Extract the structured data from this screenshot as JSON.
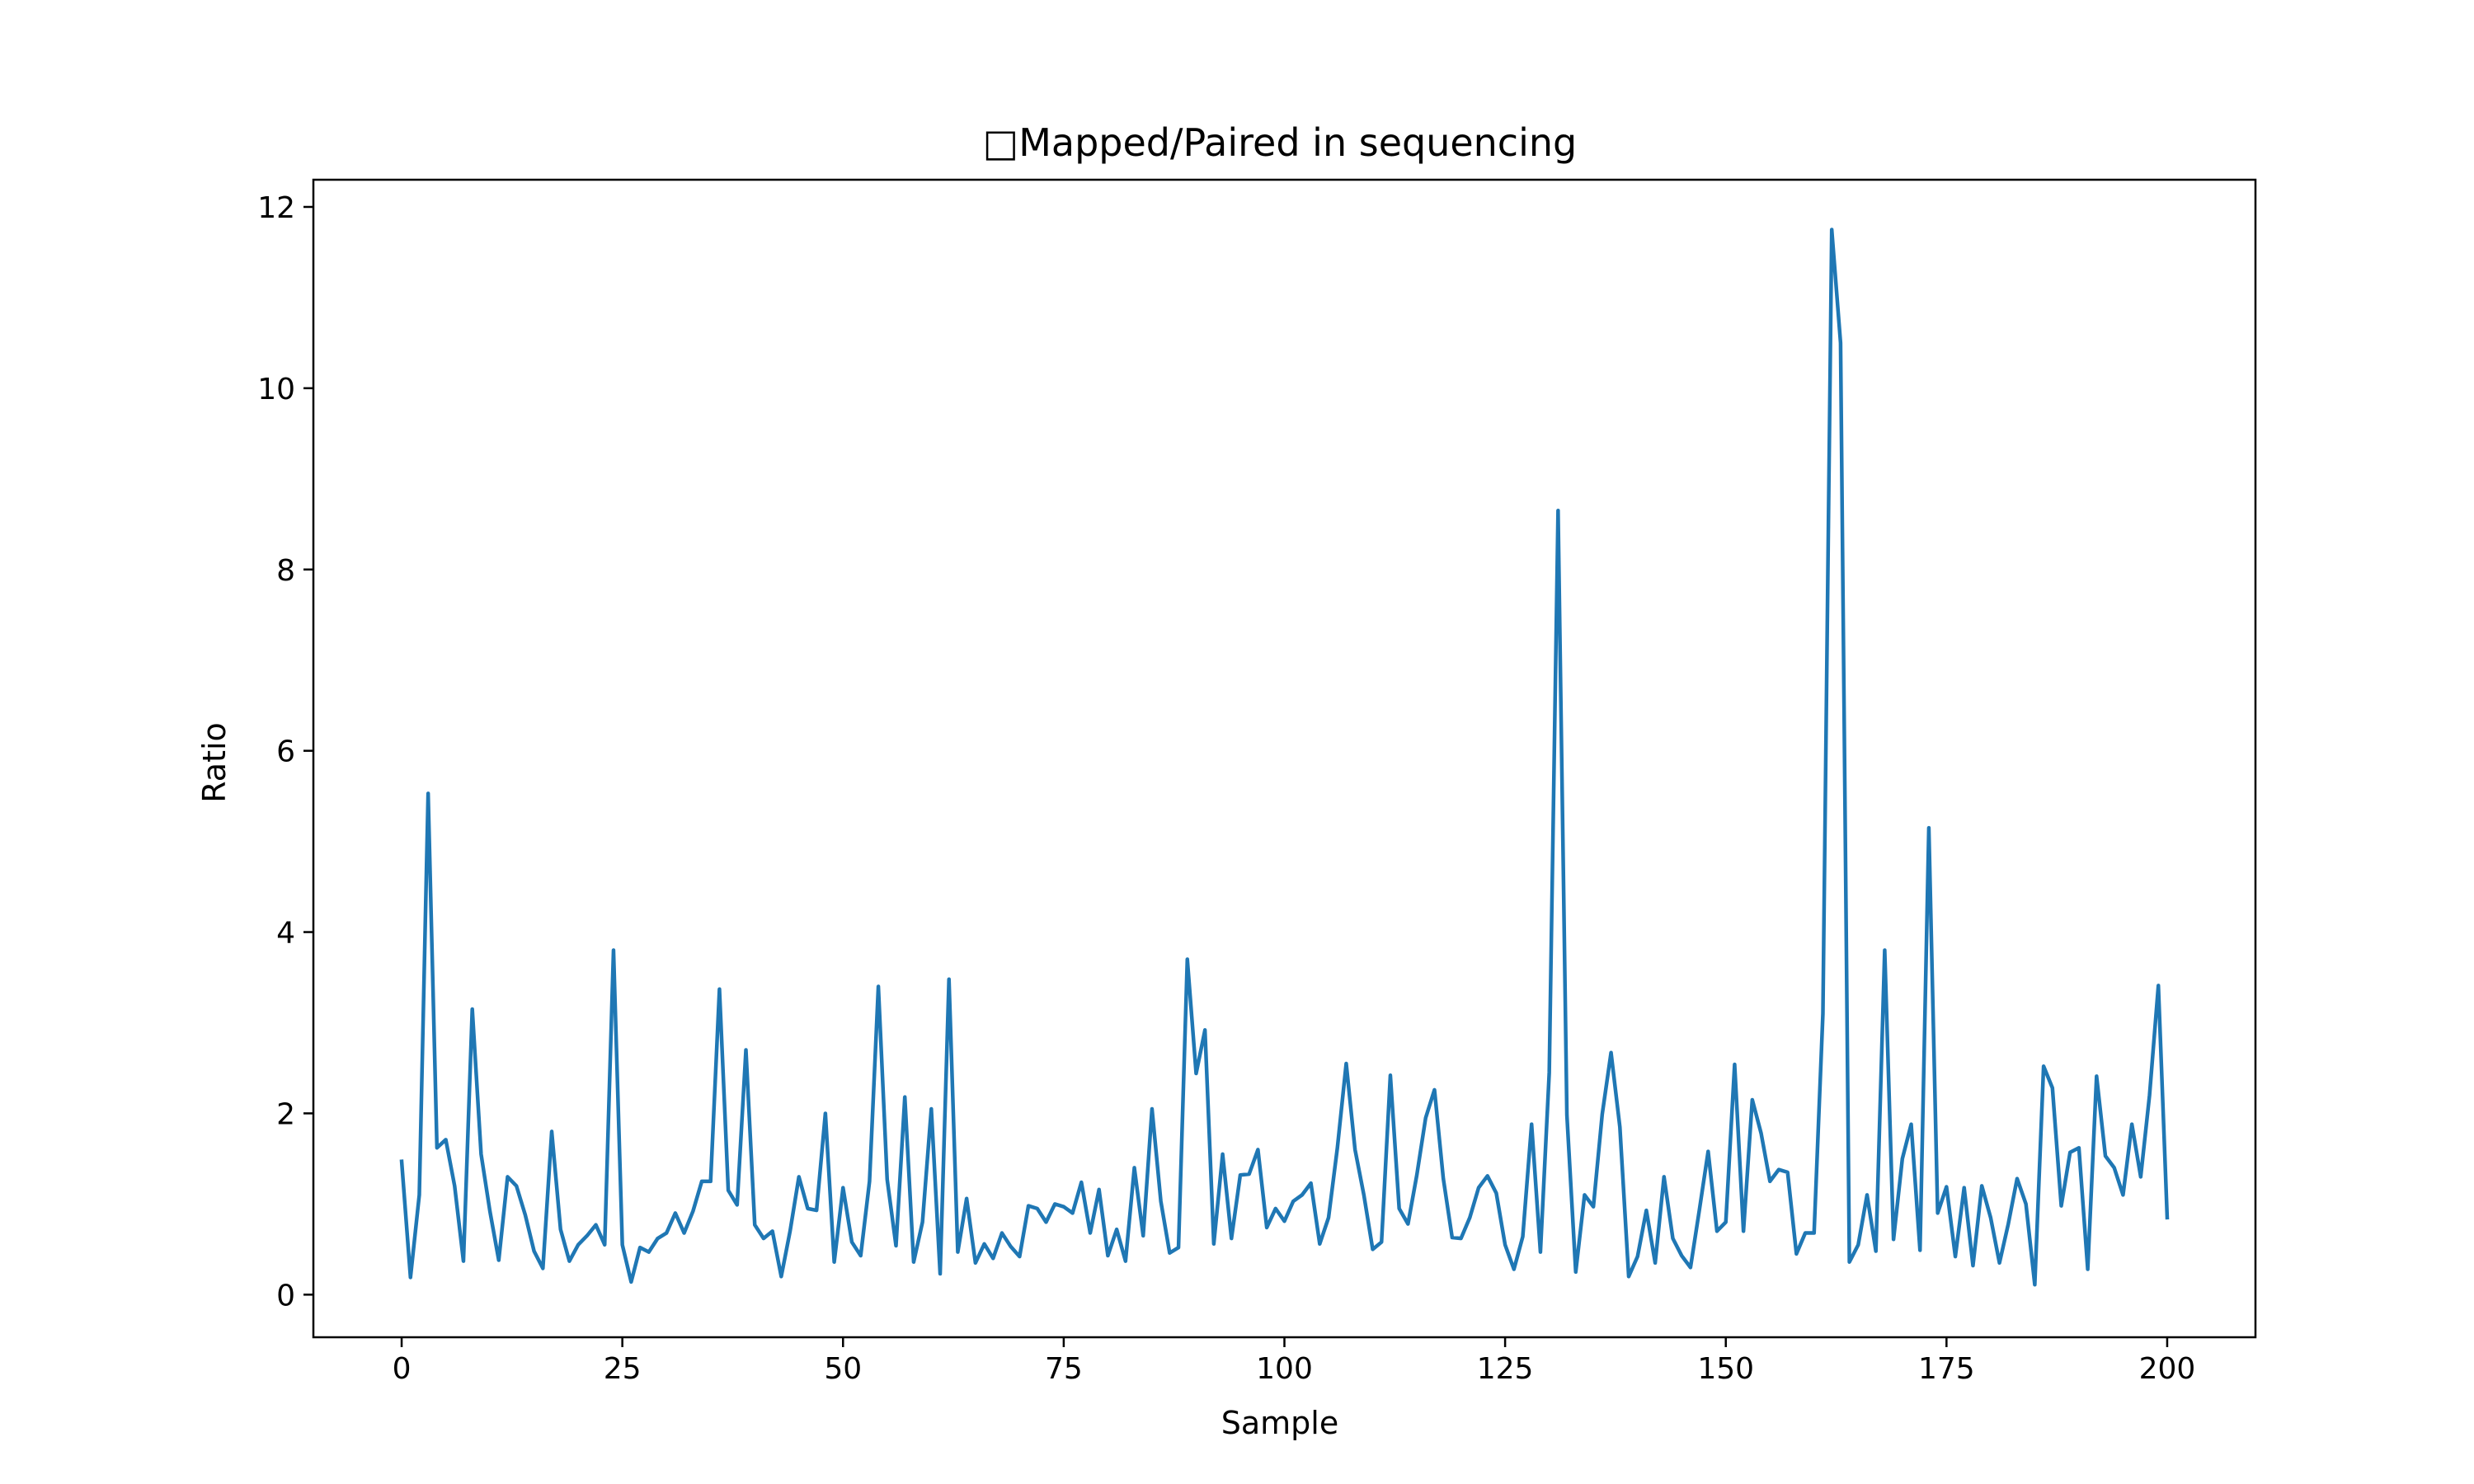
{
  "chart_data": {
    "type": "line",
    "title": "□Mapped/Paired in sequencing",
    "xlabel": "Sample",
    "ylabel": "Ratio",
    "xlim": [
      -10,
      210
    ],
    "ylim": [
      -0.47,
      12.3
    ],
    "xticks": [
      0,
      25,
      50,
      75,
      100,
      125,
      150,
      175,
      200
    ],
    "yticks": [
      0,
      2,
      4,
      6,
      8,
      10,
      12
    ],
    "grid": false,
    "legend": "none",
    "series": [
      {
        "color": "#1f77b4",
        "x_start": 0,
        "x_step": 1,
        "values": [
          1.47,
          0.19,
          1.1,
          5.53,
          1.62,
          1.71,
          1.2,
          0.37,
          3.15,
          1.55,
          0.92,
          0.38,
          1.3,
          1.2,
          0.88,
          0.48,
          0.29,
          1.8,
          0.72,
          0.37,
          0.55,
          0.65,
          0.77,
          0.55,
          3.8,
          0.55,
          0.14,
          0.52,
          0.47,
          0.62,
          0.68,
          0.9,
          0.68,
          0.92,
          1.25,
          1.25,
          3.37,
          1.15,
          0.99,
          2.7,
          0.77,
          0.62,
          0.7,
          0.2,
          0.7,
          1.3,
          0.95,
          0.93,
          2.0,
          0.36,
          1.18,
          0.58,
          0.43,
          1.25,
          3.4,
          1.27,
          0.54,
          2.18,
          0.36,
          0.8,
          2.05,
          0.23,
          3.48,
          0.47,
          1.06,
          0.35,
          0.56,
          0.4,
          0.68,
          0.53,
          0.42,
          0.98,
          0.95,
          0.8,
          1.0,
          0.97,
          0.9,
          1.24,
          0.68,
          1.16,
          0.43,
          0.72,
          0.37,
          1.4,
          0.65,
          2.05,
          1.03,
          0.46,
          0.52,
          3.7,
          2.44,
          2.92,
          0.56,
          1.55,
          0.62,
          1.32,
          1.33,
          1.6,
          0.74,
          0.95,
          0.81,
          1.03,
          1.1,
          1.23,
          0.56,
          0.85,
          1.62,
          2.55,
          1.6,
          1.1,
          0.5,
          0.58,
          2.42,
          0.95,
          0.78,
          1.32,
          1.95,
          2.26,
          1.28,
          0.63,
          0.62,
          0.85,
          1.18,
          1.31,
          1.12,
          0.55,
          0.28,
          0.64,
          1.88,
          0.47,
          2.45,
          8.65,
          1.98,
          0.25,
          1.1,
          0.97,
          1.99,
          2.67,
          1.85,
          0.2,
          0.42,
          0.93,
          0.35,
          1.3,
          0.62,
          0.43,
          0.3,
          0.93,
          1.58,
          0.7,
          0.8,
          2.54,
          0.7,
          2.15,
          1.78,
          1.25,
          1.38,
          1.35,
          0.45,
          0.68,
          0.68,
          3.1,
          11.75,
          10.5,
          0.36,
          0.55,
          1.1,
          0.48,
          3.8,
          0.61,
          1.5,
          1.88,
          0.49,
          5.15,
          0.9,
          1.19,
          0.42,
          1.18,
          0.32,
          1.2,
          0.85,
          0.35,
          0.78,
          1.28,
          1.0,
          0.11,
          2.52,
          2.28,
          0.98,
          1.57,
          1.62,
          0.28,
          2.41,
          1.53,
          1.4,
          1.1,
          1.88,
          1.3,
          2.2,
          3.41,
          0.85
        ]
      }
    ]
  }
}
